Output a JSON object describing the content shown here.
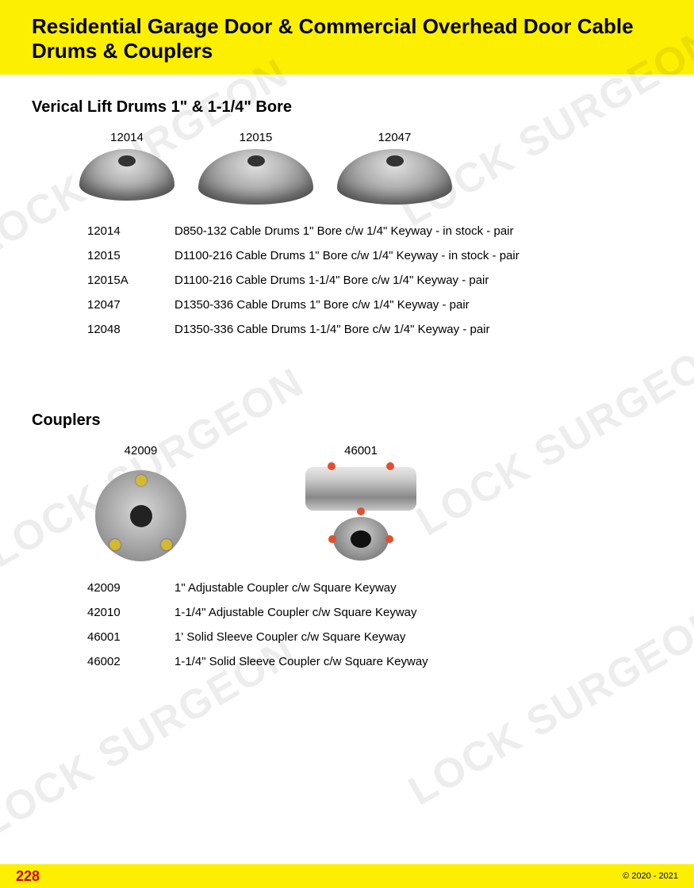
{
  "header": {
    "title": "Residential Garage Door & Commercial Overhead Door Cable Drums & Couplers",
    "bg_color": "#fdef00",
    "title_color": "#000000",
    "title_fontsize": 26
  },
  "watermark_text": "LOCK SURGEON",
  "section1": {
    "heading": "Verical Lift Drums 1\" & 1-1/4\" Bore",
    "products": [
      {
        "label": "12014"
      },
      {
        "label": "12015"
      },
      {
        "label": "12047"
      }
    ],
    "specs": [
      {
        "code": "12014",
        "desc": "D850-132 Cable Drums 1\" Bore c/w 1/4\" Keyway - in stock - pair"
      },
      {
        "code": "12015",
        "desc": "D1100-216 Cable Drums 1\" Bore c/w 1/4\" Keyway - in stock - pair"
      },
      {
        "code": "12015A",
        "desc": "D1100-216 Cable Drums 1-1/4\" Bore c/w 1/4\" Keyway - pair"
      },
      {
        "code": "12047",
        "desc": "D1350-336 Cable Drums 1\" Bore c/w 1/4\" Keyway - pair"
      },
      {
        "code": "12048",
        "desc": "D1350-336 Cable Drums 1-1/4\" Bore c/w 1/4\" Keyway - pair"
      }
    ]
  },
  "section2": {
    "heading": "Couplers",
    "products": [
      {
        "label": "42009"
      },
      {
        "label": "46001"
      }
    ],
    "specs": [
      {
        "code": "42009",
        "desc": "1\" Adjustable Coupler c/w Square Keyway"
      },
      {
        "code": "42010",
        "desc": "1-1/4\" Adjustable Coupler c/w Square Keyway"
      },
      {
        "code": "46001",
        "desc": "1' Solid Sleeve Coupler c/w Square Keyway"
      },
      {
        "code": "46002",
        "desc": "1-1/4\" Solid Sleeve Coupler c/w Square Keyway"
      }
    ]
  },
  "footer": {
    "page_number": "228",
    "copyright": "© 2020 - 2021",
    "bg_color": "#fdef00",
    "page_color": "#c80000"
  },
  "colors": {
    "background": "#ffffff",
    "text": "#000000"
  }
}
